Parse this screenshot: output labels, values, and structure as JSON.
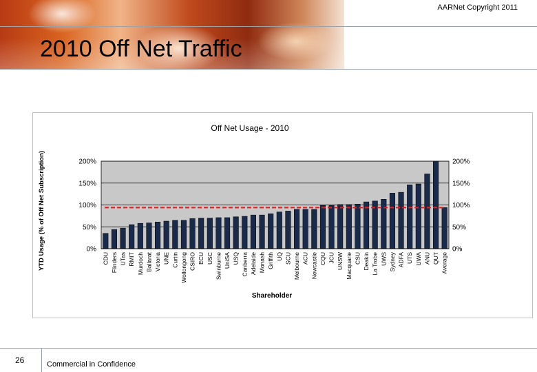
{
  "header": {
    "copyright": "AARNet Copyright 2011",
    "title": "2010 Off Net Traffic"
  },
  "footer": {
    "page_number": "26",
    "confidential": "Commercial in Confidence"
  },
  "colors": {
    "bar_fill": "#1a2a4a",
    "reference_line": "#e02020",
    "grid": "#000000",
    "plot_background": "#c8c8c8"
  },
  "chart_data": {
    "type": "bar",
    "title": "Off Net Usage - 2010",
    "xlabel": "Shareholder",
    "ylabel": "YTD Usage (% of Off Net Subscription)",
    "ylim": [
      0,
      200
    ],
    "yticks": [
      "0%",
      "50%",
      "100%",
      "150%",
      "200%"
    ],
    "grid": true,
    "secondary_y_axis": true,
    "categories": [
      "CDU",
      "Flinders",
      "UTas",
      "RMIT",
      "Murdoch",
      "Ballarat",
      "Victoria",
      "UNE",
      "Curtin",
      "Wollongong",
      "CSIRO",
      "ECU",
      "USC",
      "Swinburne",
      "UniSA",
      "USQ",
      "Canberra",
      "Adelaide",
      "Monash",
      "Griffith",
      "UQ",
      "SCU",
      "Melbourne",
      "ACU",
      "Newcastle",
      "CQU",
      "JCU",
      "UNSW",
      "Macquarie",
      "CSU",
      "Deakin",
      "La Trobe",
      "UWS",
      "Sydney",
      "ADFA",
      "UTS",
      "UWA",
      "ANU",
      "QUT",
      "Average"
    ],
    "values": [
      35,
      44,
      47,
      55,
      58,
      59,
      61,
      63,
      65,
      65,
      69,
      70,
      70,
      71,
      71,
      73,
      74,
      77,
      77,
      80,
      84,
      86,
      90,
      90,
      90,
      99,
      99,
      101,
      101,
      102,
      107,
      109,
      113,
      127,
      129,
      146,
      148,
      171,
      200,
      94
    ],
    "reference_line": 94
  }
}
